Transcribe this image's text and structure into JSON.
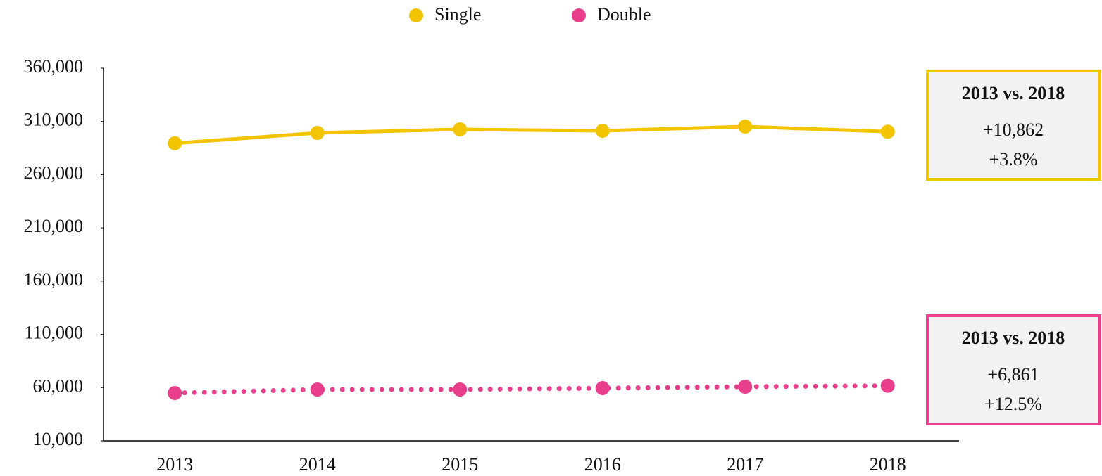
{
  "chart_data": {
    "type": "line",
    "categories": [
      "2013",
      "2014",
      "2015",
      "2016",
      "2017",
      "2018"
    ],
    "series": [
      {
        "name": "Single",
        "color": "#f2c500",
        "style": "solid",
        "values": [
          289500,
          299255,
          302557,
          301226,
          305200,
          300362
        ]
      },
      {
        "name": "Double",
        "color": "#e83e8c",
        "style": "dotted",
        "values": [
          54900,
          58200,
          58200,
          59500,
          60850,
          61761
        ]
      }
    ],
    "ylim": [
      10000,
      360000
    ],
    "yticks": [
      {
        "value": 10000,
        "label": "10,000"
      },
      {
        "value": 60000,
        "label": "60,000"
      },
      {
        "value": 110000,
        "label": "110,000"
      },
      {
        "value": 160000,
        "label": "160,000"
      },
      {
        "value": 210000,
        "label": "210,000"
      },
      {
        "value": 260000,
        "label": "260,000"
      },
      {
        "value": 310000,
        "label": "310,000"
      },
      {
        "value": 360000,
        "label": "360,000"
      }
    ],
    "grid": false,
    "legend": "top",
    "annotations": [
      {
        "title": "2013 vs. 2018",
        "lines": [
          "+10,862",
          "+3.8%"
        ],
        "color": "#f2c500"
      },
      {
        "title": "2013 vs. 2018",
        "lines": [
          "+6,861",
          "+12.5%"
        ],
        "color": "#e83e8c"
      }
    ]
  }
}
